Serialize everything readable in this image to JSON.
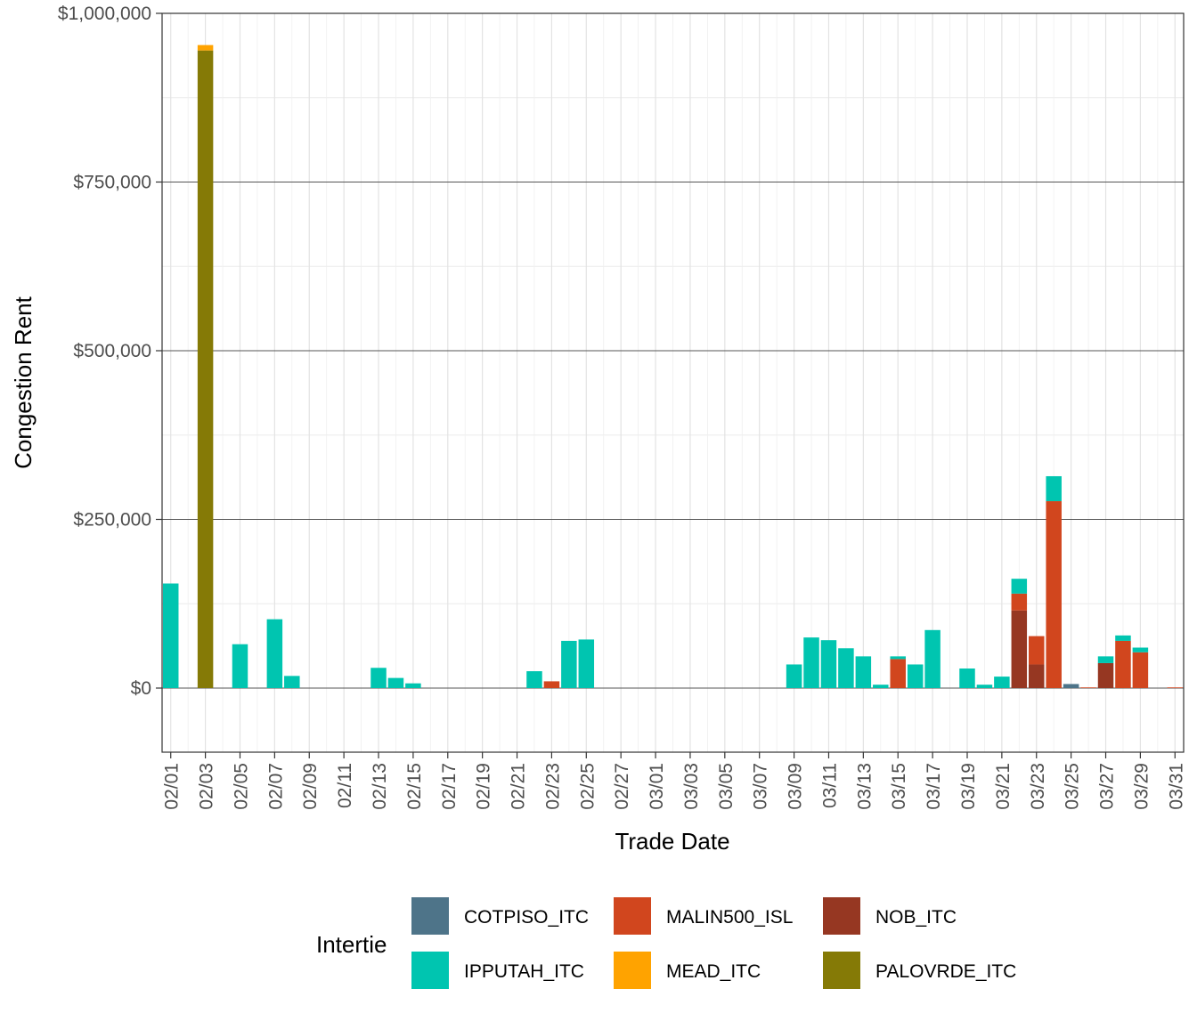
{
  "chart_data": {
    "type": "bar",
    "stacked": true,
    "xlabel": "Trade Date",
    "ylabel": "Congestion Rent",
    "ylim": [
      -95000,
      1000000
    ],
    "y_ticks": [
      0,
      250000,
      500000,
      750000,
      1000000
    ],
    "y_tick_labels": [
      "$0",
      "$250,000",
      "$500,000",
      "$750,000",
      "$1,000,000"
    ],
    "grid": true,
    "legend_position": "bottom",
    "legend_title": "Intertie",
    "x_tick_labels": [
      "02/01",
      "02/03",
      "02/05",
      "02/07",
      "02/09",
      "02/11",
      "02/13",
      "02/15",
      "02/17",
      "02/19",
      "02/21",
      "02/23",
      "02/25",
      "02/27",
      "03/01",
      "03/03",
      "03/05",
      "03/07",
      "03/09",
      "03/11",
      "03/13",
      "03/15",
      "03/17",
      "03/19",
      "03/21",
      "03/23",
      "03/25",
      "03/27",
      "03/29",
      "03/31"
    ],
    "categories": [
      "02/01",
      "02/02",
      "02/03",
      "02/04",
      "02/05",
      "02/06",
      "02/07",
      "02/08",
      "02/09",
      "02/10",
      "02/11",
      "02/12",
      "02/13",
      "02/14",
      "02/15",
      "02/16",
      "02/17",
      "02/18",
      "02/19",
      "02/20",
      "02/21",
      "02/22",
      "02/23",
      "02/24",
      "02/25",
      "02/26",
      "02/27",
      "02/28",
      "03/01",
      "03/02",
      "03/03",
      "03/04",
      "03/05",
      "03/06",
      "03/07",
      "03/08",
      "03/09",
      "03/10",
      "03/11",
      "03/12",
      "03/13",
      "03/14",
      "03/15",
      "03/16",
      "03/17",
      "03/18",
      "03/19",
      "03/20",
      "03/21",
      "03/22",
      "03/23",
      "03/24",
      "03/25",
      "03/26",
      "03/27",
      "03/28",
      "03/29",
      "03/30",
      "03/31"
    ],
    "stack_order": [
      "PALOVRDE_ITC",
      "NOB_ITC",
      "MALIN500_ISL",
      "MEAD_ITC",
      "IPPUTAH_ITC",
      "COTPISO_ITC"
    ],
    "legend_order": [
      "COTPISO_ITC",
      "IPPUTAH_ITC",
      "MALIN500_ISL",
      "MEAD_ITC",
      "NOB_ITC",
      "PALOVRDE_ITC"
    ],
    "series": [
      {
        "name": "COTPISO_ITC",
        "color": "#4E7489",
        "values": [
          0,
          0,
          0,
          0,
          0,
          0,
          0,
          0,
          0,
          0,
          0,
          0,
          0,
          0,
          0,
          0,
          0,
          0,
          0,
          0,
          0,
          0,
          0,
          0,
          0,
          0,
          0,
          0,
          0,
          0,
          0,
          0,
          0,
          0,
          0,
          0,
          0,
          0,
          0,
          0,
          0,
          0,
          0,
          0,
          0,
          0,
          0,
          0,
          0,
          0,
          0,
          0,
          6000,
          0,
          0,
          0,
          0,
          0,
          0
        ]
      },
      {
        "name": "IPPUTAH_ITC",
        "color": "#00C5B0",
        "values": [
          155000,
          0,
          0,
          0,
          65000,
          0,
          102000,
          18000,
          0,
          0,
          0,
          0,
          30000,
          15000,
          7000,
          0,
          0,
          0,
          0,
          0,
          0,
          25000,
          0,
          70000,
          72000,
          0,
          0,
          0,
          0,
          0,
          0,
          0,
          0,
          0,
          0,
          0,
          35000,
          75000,
          71000,
          59000,
          47000,
          5000,
          4000,
          35000,
          86000,
          0,
          29000,
          5000,
          17000,
          22000,
          0,
          37000,
          0,
          0,
          10000,
          8000,
          7000,
          0,
          0
        ]
      },
      {
        "name": "MALIN500_ISL",
        "color": "#D1461E",
        "values": [
          0,
          0,
          0,
          0,
          0,
          0,
          0,
          0,
          0,
          0,
          0,
          0,
          0,
          0,
          0,
          0,
          0,
          0,
          0,
          0,
          0,
          0,
          10000,
          0,
          0,
          0,
          0,
          0,
          0,
          0,
          0,
          0,
          0,
          0,
          0,
          0,
          0,
          0,
          0,
          0,
          0,
          0,
          43000,
          0,
          0,
          0,
          0,
          0,
          0,
          25000,
          42000,
          277000,
          0,
          1000,
          0,
          70000,
          53000,
          0,
          1000
        ]
      },
      {
        "name": "MEAD_ITC",
        "color": "#FFA300",
        "values": [
          0,
          0,
          8000,
          0,
          0,
          0,
          0,
          0,
          0,
          0,
          0,
          0,
          0,
          0,
          0,
          0,
          0,
          0,
          0,
          0,
          0,
          0,
          0,
          0,
          0,
          0,
          0,
          0,
          0,
          0,
          0,
          0,
          0,
          0,
          0,
          0,
          0,
          0,
          0,
          0,
          0,
          0,
          0,
          0,
          0,
          0,
          0,
          0,
          0,
          0,
          0,
          0,
          0,
          0,
          0,
          0,
          0,
          0,
          0
        ]
      },
      {
        "name": "NOB_ITC",
        "color": "#963722",
        "values": [
          0,
          0,
          0,
          0,
          0,
          0,
          0,
          0,
          0,
          0,
          0,
          0,
          0,
          0,
          0,
          0,
          0,
          0,
          0,
          0,
          0,
          0,
          0,
          0,
          0,
          0,
          0,
          0,
          0,
          0,
          0,
          0,
          0,
          0,
          0,
          0,
          0,
          0,
          0,
          0,
          0,
          0,
          0,
          0,
          0,
          0,
          0,
          0,
          0,
          115000,
          35000,
          0,
          0,
          0,
          37000,
          0,
          0,
          0,
          0
        ]
      },
      {
        "name": "PALOVRDE_ITC",
        "color": "#857A06",
        "values": [
          0,
          0,
          945000,
          0,
          0,
          0,
          0,
          0,
          0,
          0,
          0,
          0,
          0,
          0,
          0,
          0,
          0,
          0,
          0,
          0,
          0,
          0,
          0,
          0,
          0,
          0,
          0,
          0,
          0,
          0,
          0,
          0,
          0,
          0,
          0,
          0,
          0,
          0,
          0,
          0,
          0,
          0,
          0,
          0,
          0,
          0,
          0,
          0,
          0,
          0,
          0,
          0,
          0,
          0,
          0,
          0,
          0,
          0,
          0
        ]
      }
    ]
  }
}
